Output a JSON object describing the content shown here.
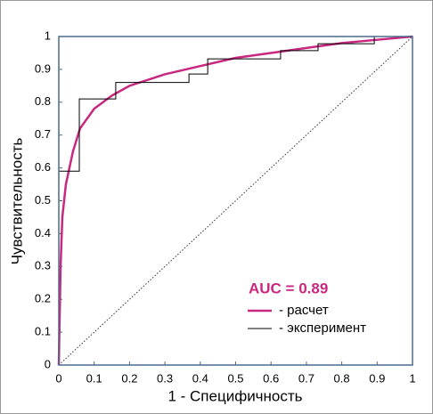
{
  "chart_data": {
    "type": "line",
    "annotation": "AUC = 0.89",
    "x_label": "1 - Специфичность",
    "y_label": "Чувствительность",
    "xlim": [
      0,
      1
    ],
    "ylim": [
      0,
      1
    ],
    "xticks": [
      0,
      0.1,
      0.2,
      0.3,
      0.4,
      0.5,
      0.6,
      0.7,
      0.8,
      0.9,
      1
    ],
    "yticks": [
      0,
      0.1,
      0.2,
      0.3,
      0.4,
      0.5,
      0.6,
      0.7,
      0.8,
      0.9,
      1
    ],
    "series": [
      {
        "name": "- расчет",
        "color": "#c8287f",
        "x": [
          0,
          0.005,
          0.01,
          0.02,
          0.04,
          0.06,
          0.1,
          0.15,
          0.2,
          0.3,
          0.4,
          0.5,
          0.6,
          0.7,
          0.8,
          0.9,
          1
        ],
        "values": [
          0,
          0.3,
          0.45,
          0.55,
          0.65,
          0.72,
          0.78,
          0.82,
          0.85,
          0.885,
          0.91,
          0.935,
          0.95,
          0.965,
          0.98,
          0.99,
          1
        ]
      },
      {
        "name": "- эксперимент",
        "color": "#000000",
        "x": [
          0,
          0,
          0.058,
          0.058,
          0.161,
          0.161,
          0.368,
          0.368,
          0.421,
          0.421,
          0.627,
          0.627,
          0.733,
          0.733,
          0.892,
          0.892,
          1
        ],
        "values": [
          0,
          0.59,
          0.59,
          0.81,
          0.81,
          0.86,
          0.86,
          0.886,
          0.886,
          0.932,
          0.932,
          0.957,
          0.957,
          0.978,
          0.978,
          1,
          1
        ]
      }
    ]
  }
}
